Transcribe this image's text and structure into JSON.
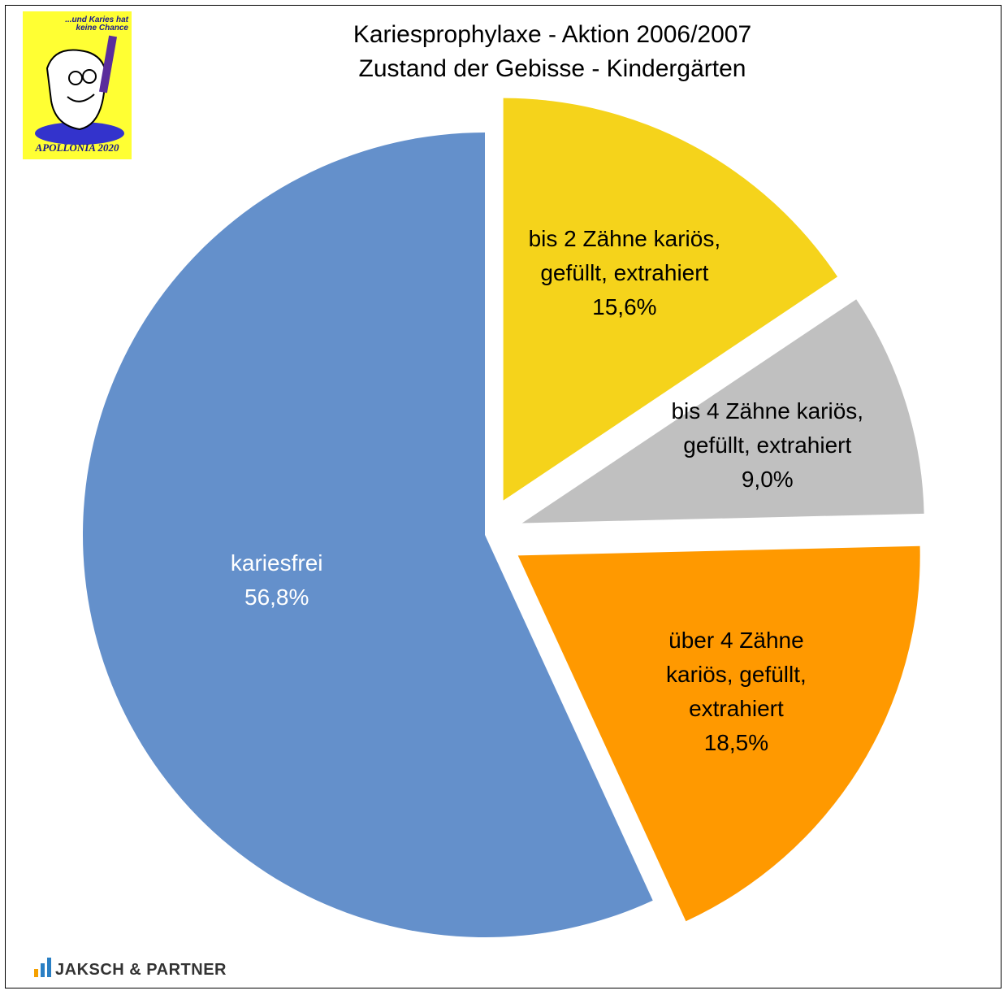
{
  "chart_data": {
    "type": "pie",
    "title": "Kariesprophylaxe - Aktion 2006/2007",
    "subtitle": "Zustand der Gebisse - Kindergärten",
    "categories": [
      "bis 2 Zähne kariös, gefüllt, extrahiert",
      "bis 4 Zähne kariös, gefüllt, extrahiert",
      "über 4 Zähne kariös, gefüllt, extrahiert",
      "kariesfrei"
    ],
    "values": [
      15.6,
      9.0,
      18.5,
      56.8
    ],
    "value_labels": [
      "15,6%",
      "9,0%",
      "18,5%",
      "56,8%"
    ],
    "colors": [
      "#f5d31b",
      "#c0c0c0",
      "#ff9900",
      "#6490cb"
    ]
  },
  "logo": {
    "slogan": "...und Karies hat keine Chance",
    "name": "APOLLONIA 2020"
  },
  "footer": {
    "brand": "JAKSCH & PARTNER"
  }
}
